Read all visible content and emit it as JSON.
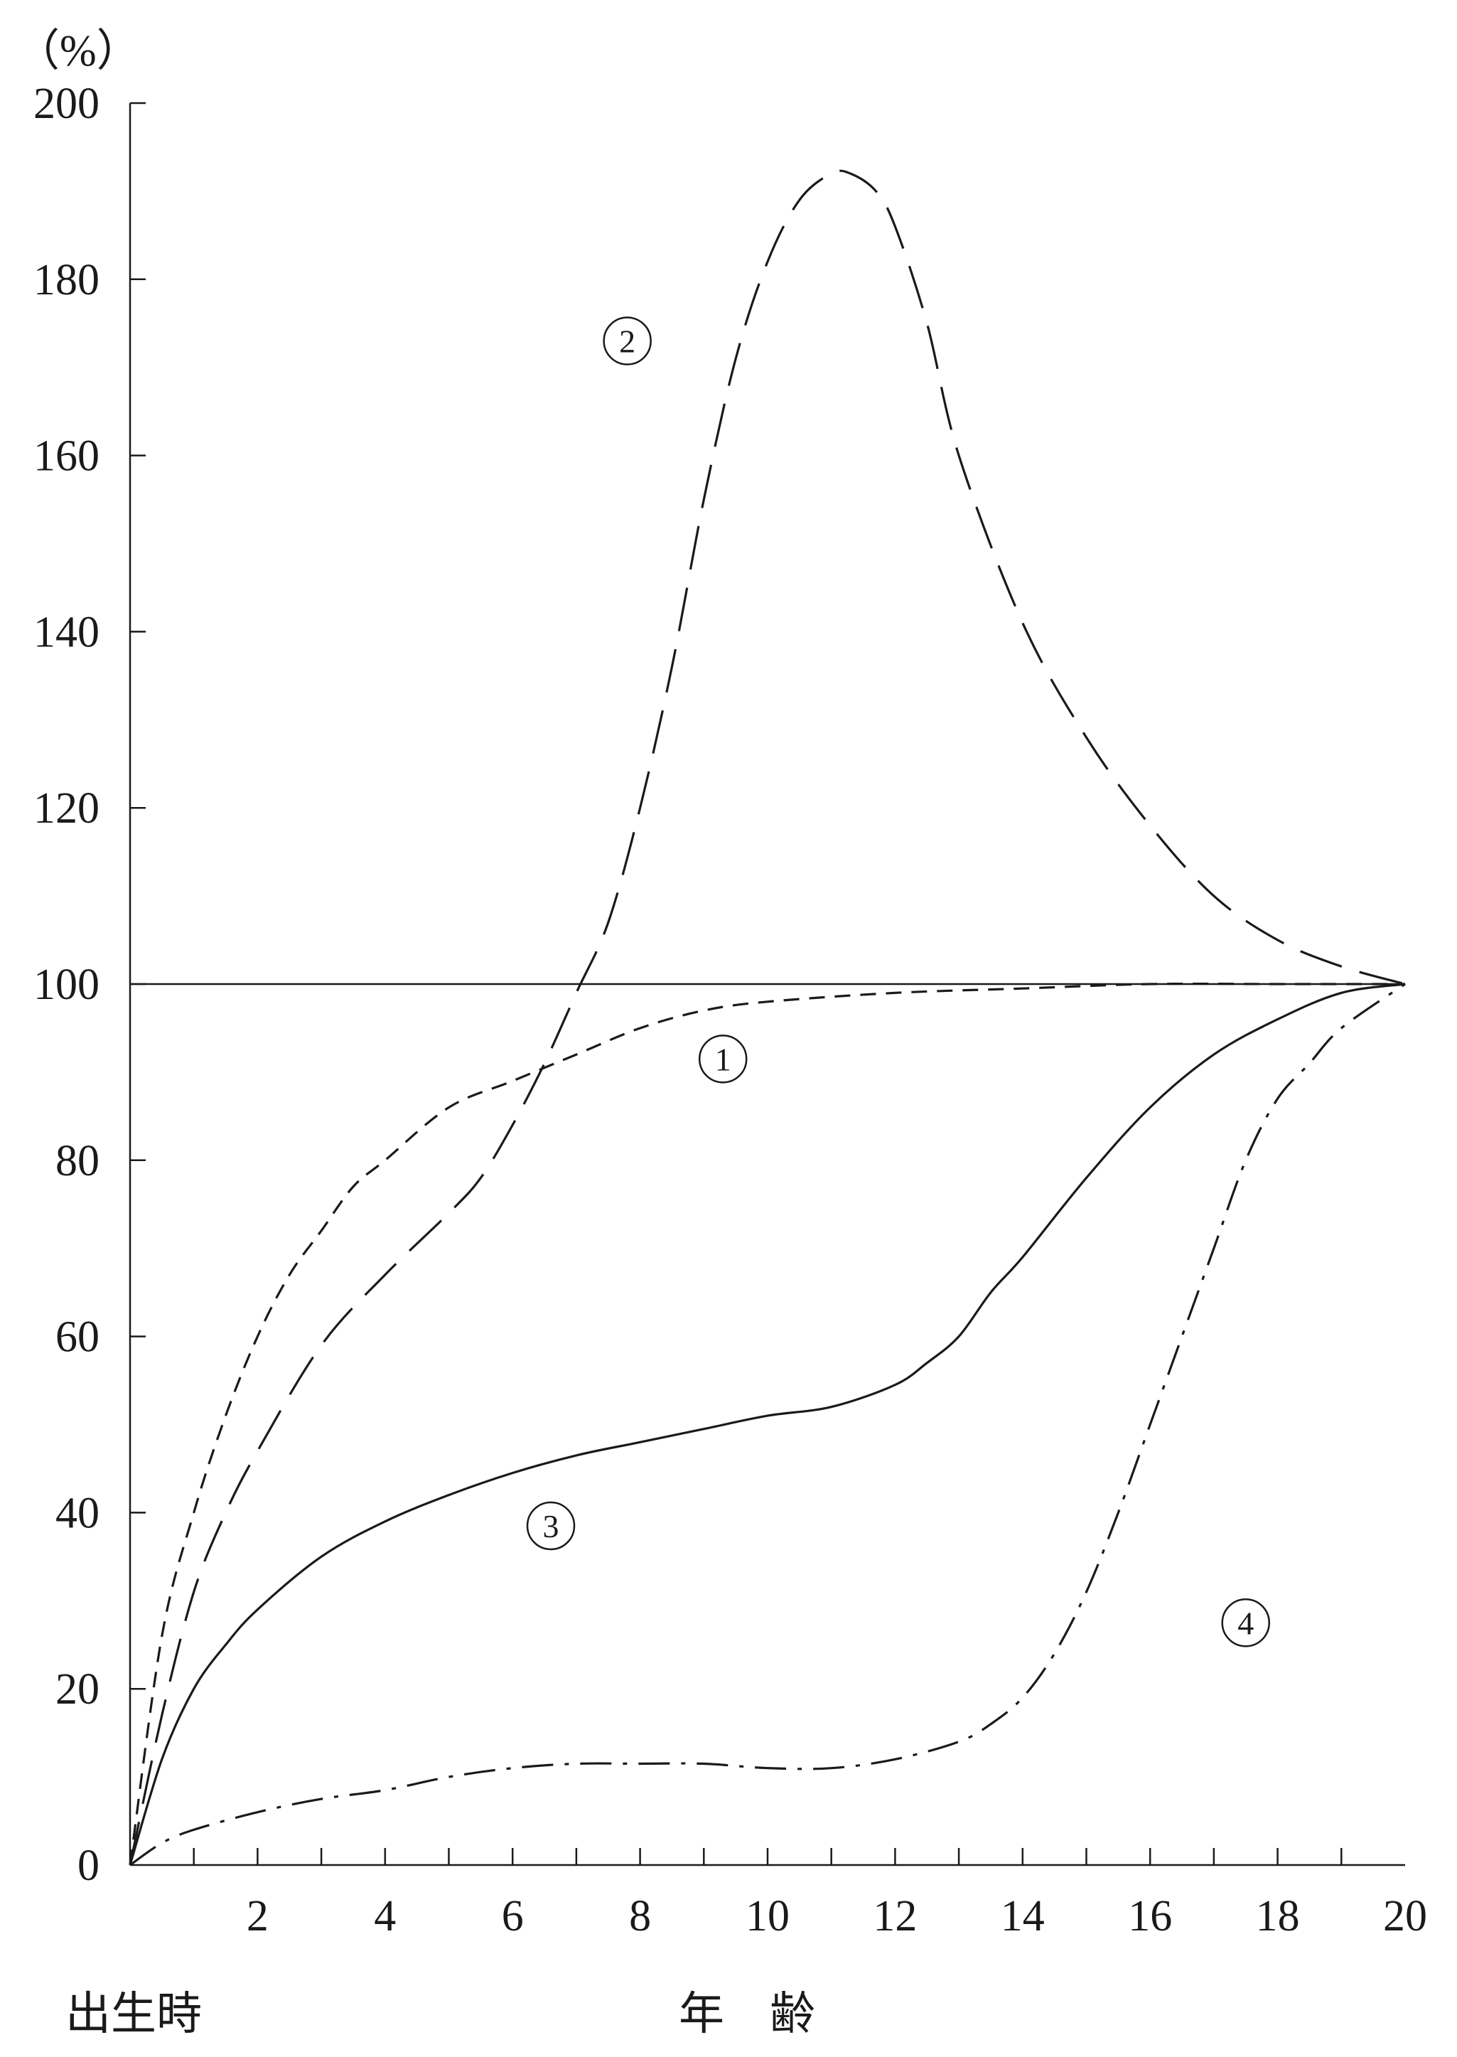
{
  "chart_data": {
    "type": "line",
    "title": "",
    "ylabel": "（%）",
    "xlabel": "年　齢",
    "x_origin_label": "出生時",
    "xlim": [
      0,
      20
    ],
    "ylim": [
      0,
      200
    ],
    "x_ticks_minor": [
      1,
      2,
      3,
      4,
      5,
      6,
      7,
      8,
      9,
      10,
      11,
      12,
      13,
      14,
      15,
      16,
      17,
      18,
      19,
      20
    ],
    "x_tick_labels": [
      "2",
      "4",
      "6",
      "8",
      "10",
      "12",
      "14",
      "16",
      "18",
      "20"
    ],
    "x_tick_label_values": [
      2,
      4,
      6,
      8,
      10,
      12,
      14,
      16,
      18,
      20
    ],
    "y_tick_labels": [
      "0",
      "20",
      "40",
      "60",
      "80",
      "100",
      "120",
      "140",
      "160",
      "180",
      "200"
    ],
    "y_tick_label_values": [
      0,
      20,
      40,
      60,
      80,
      100,
      120,
      140,
      160,
      180,
      200
    ],
    "reference_line": {
      "y": 100
    },
    "grid": false,
    "series": [
      {
        "label": "①",
        "style": "short-dash",
        "label_pos": {
          "x": 9.3,
          "y": 91.5
        },
        "x": [
          0,
          0.5,
          1,
          1.5,
          2,
          2.5,
          3,
          3.5,
          4,
          5,
          6,
          7,
          8,
          9,
          10,
          12,
          14,
          16,
          18,
          20
        ],
        "y": [
          0,
          26,
          40,
          51,
          60,
          67,
          72,
          77,
          80,
          86,
          89,
          92,
          95,
          97,
          98,
          99,
          99.5,
          100,
          100,
          100
        ]
      },
      {
        "label": "②",
        "style": "long-dash",
        "label_pos": {
          "x": 7.8,
          "y": 173
        },
        "x": [
          0,
          0.5,
          1,
          1.5,
          2,
          3,
          4,
          5,
          5.5,
          6,
          6.5,
          7,
          7.5,
          8,
          8.5,
          9,
          9.5,
          10,
          10.5,
          11,
          11.3,
          11.7,
          12,
          12.5,
          13,
          14,
          15,
          16,
          17,
          18,
          19,
          20
        ],
        "y": [
          0,
          17,
          31,
          40,
          47,
          59,
          67,
          74,
          78,
          84,
          91,
          99,
          107,
          120,
          136,
          155,
          171,
          182,
          189,
          192,
          192,
          190,
          186,
          175,
          160,
          141,
          128,
          118,
          110,
          105,
          102,
          100
        ]
      },
      {
        "label": "③",
        "style": "solid",
        "label_pos": {
          "x": 6.6,
          "y": 38.5
        },
        "x": [
          0,
          0.5,
          1,
          1.5,
          2,
          3,
          4,
          5,
          6,
          7,
          8,
          9,
          10,
          11,
          12,
          12.5,
          13,
          13.5,
          14,
          15,
          16,
          17,
          18,
          19,
          20
        ],
        "y": [
          0,
          12,
          20,
          25,
          29,
          35,
          39,
          42,
          44.5,
          46.5,
          48,
          49.5,
          51,
          52,
          54.5,
          57,
          60,
          65,
          69,
          78,
          86,
          92,
          96,
          99,
          100
        ]
      },
      {
        "label": "④",
        "style": "dash-dot",
        "label_pos": {
          "x": 17.5,
          "y": 27.5
        },
        "x": [
          0,
          0.5,
          1,
          2,
          3,
          4,
          5,
          6,
          7,
          8,
          9,
          10,
          11,
          12,
          13,
          13.5,
          14,
          14.5,
          15,
          15.5,
          16,
          16.5,
          17,
          17.5,
          18,
          18.5,
          19,
          20
        ],
        "y": [
          0,
          2.5,
          4,
          6,
          7.5,
          8.5,
          10,
          11,
          11.5,
          11.5,
          11.5,
          11,
          11,
          12,
          14,
          16,
          19,
          24,
          31,
          40,
          50,
          60,
          70,
          80,
          87,
          91,
          95,
          100
        ]
      }
    ]
  }
}
